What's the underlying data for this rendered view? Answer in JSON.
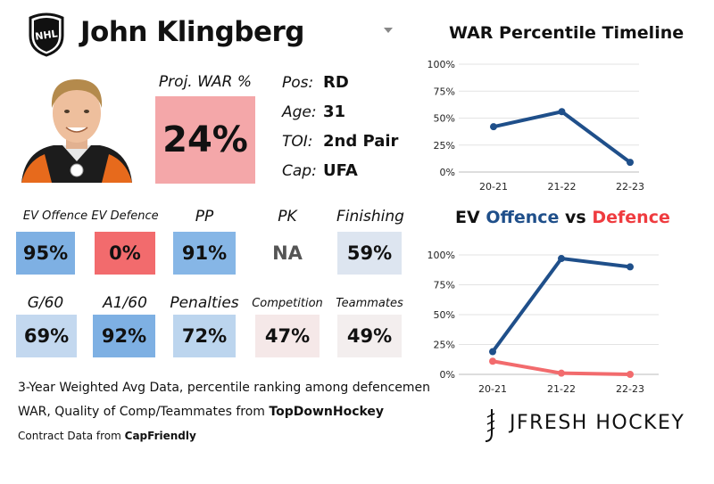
{
  "player": {
    "name": "John Klingberg",
    "league_logo_text": "NHL"
  },
  "proj_war": {
    "label": "Proj. WAR %",
    "value": "24%",
    "color": "#f4a7a9"
  },
  "info": [
    {
      "label": "Pos:",
      "value": "RD"
    },
    {
      "label": "Age:",
      "value": "31"
    },
    {
      "label": "TOI:",
      "value": "2nd Pair"
    },
    {
      "label": "Cap:",
      "value": "UFA"
    }
  ],
  "stats_row1": [
    {
      "label": "EV Offence",
      "value": "95%",
      "color": "#7eb0e3"
    },
    {
      "label": "EV Defence",
      "value": "0%",
      "color": "#f26b6d"
    },
    {
      "label": "PP",
      "value": "91%",
      "color": "#86b6e6"
    },
    {
      "label": "PK",
      "value": "NA",
      "color": "#ffffff"
    },
    {
      "label": "Finishing",
      "value": "59%",
      "color": "#dde5f0"
    }
  ],
  "stats_row2": [
    {
      "label": "G/60",
      "value": "69%",
      "color": "#c3d8ef"
    },
    {
      "label": "A1/60",
      "value": "92%",
      "color": "#7eb0e3"
    },
    {
      "label": "Penalties",
      "value": "72%",
      "color": "#bcd5ee"
    },
    {
      "label": "Competition",
      "value": "47%",
      "color": "#f5e8e8"
    },
    {
      "label": "Teammates",
      "value": "49%",
      "color": "#f3eeee"
    }
  ],
  "footer": {
    "line1": "3-Year Weighted Avg Data, percentile ranking among defencemen",
    "line2_prefix": "WAR, Quality of Comp/Teammates from ",
    "line2_source": "TopDownHockey",
    "line3_prefix": "Contract Data from ",
    "line3_source": "CapFriendly"
  },
  "brand": {
    "name": "JFRESH HOCKEY"
  },
  "chart_data": [
    {
      "type": "line",
      "title": "WAR Percentile Timeline",
      "x": [
        "20-21",
        "21-22",
        "22-23"
      ],
      "series": [
        {
          "name": "WAR",
          "values": [
            42,
            56,
            9
          ],
          "color": "#1f4f8a"
        }
      ],
      "ylim": [
        0,
        100
      ],
      "yticks": [
        0,
        25,
        50,
        75,
        100
      ],
      "ytick_labels": [
        "0%",
        "25%",
        "50%",
        "75%",
        "100%"
      ],
      "xlabel": "",
      "ylabel": ""
    },
    {
      "type": "line",
      "title": {
        "part1": "EV",
        "part2": "Offence",
        "part3": "vs",
        "part4": "Defence"
      },
      "title_colors": {
        "offence": "#1f4f8a",
        "defence": "#ef3b3f"
      },
      "x": [
        "20-21",
        "21-22",
        "22-23"
      ],
      "series": [
        {
          "name": "EV Offence",
          "values": [
            19,
            97,
            90
          ],
          "color": "#1f4f8a"
        },
        {
          "name": "EV Defence",
          "values": [
            11,
            1,
            0
          ],
          "color": "#f26b6d"
        }
      ],
      "ylim": [
        0,
        100
      ],
      "yticks": [
        0,
        25,
        50,
        75,
        100
      ],
      "ytick_labels": [
        "0%",
        "25%",
        "50%",
        "75%",
        "100%"
      ],
      "xlabel": "",
      "ylabel": ""
    }
  ]
}
